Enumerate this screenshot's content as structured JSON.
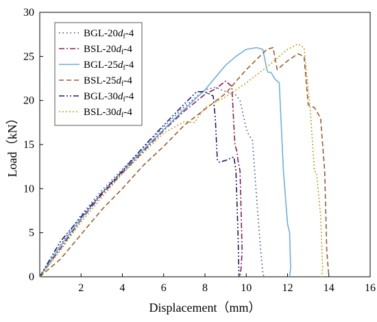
{
  "chart_data": {
    "type": "line",
    "xlabel": "Displacement（mm）",
    "ylabel": "Load（kN）",
    "xlim": [
      0,
      16
    ],
    "ylim": [
      0,
      30
    ],
    "xticks": [
      2,
      4,
      6,
      8,
      10,
      12,
      14,
      16
    ],
    "yticks": [
      0,
      5,
      10,
      15,
      20,
      25,
      30
    ],
    "grid": false,
    "legend_position": "top-left",
    "series": [
      {
        "name": "BGL-20d_f-4",
        "label_main": "BGL-20",
        "label_italic": "d",
        "label_sub": "f",
        "label_tail": "-4",
        "color": "#1f3fb0",
        "dash": "1.5,4",
        "x": [
          0,
          1,
          2,
          3,
          4,
          5,
          6,
          7,
          8,
          8.5,
          9.0,
          9.5,
          9.7,
          10.0,
          10.1,
          10.3,
          10.5,
          10.7,
          10.8,
          10.85
        ],
        "y": [
          0,
          3.6,
          7.0,
          9.8,
          12.2,
          14.6,
          17.0,
          19.3,
          21.2,
          21.5,
          21.0,
          20.6,
          20.0,
          16.8,
          16.2,
          15.5,
          9.0,
          3.0,
          0.5,
          0
        ]
      },
      {
        "name": "BSL-20d_f-4",
        "label_main": "BSL-20",
        "label_italic": "d",
        "label_sub": "f",
        "label_tail": "-4",
        "color": "#8b1a4a",
        "dash": "8,3,2,3",
        "x": [
          0,
          1,
          2,
          3,
          4,
          5,
          6,
          7,
          8,
          8.5,
          9.0,
          9.3,
          9.45,
          9.55,
          9.6,
          9.7,
          9.8,
          9.75,
          9.7
        ],
        "y": [
          0,
          3.2,
          6.5,
          9.3,
          11.8,
          14.2,
          16.6,
          18.8,
          20.7,
          21.3,
          22.2,
          21.6,
          15.0,
          14.2,
          13.2,
          12.0,
          3.0,
          1.0,
          0
        ]
      },
      {
        "name": "BGL-25d_f-4",
        "label_main": "BGL-25",
        "label_italic": "d",
        "label_sub": "f",
        "label_tail": "-4",
        "color": "#6aafe0",
        "dash": "",
        "x": [
          0,
          1,
          2,
          3,
          4,
          5,
          6,
          7,
          8,
          8.5,
          9.0,
          9.5,
          10.0,
          10.5,
          10.8,
          11.0,
          11.05,
          11.2,
          11.4,
          11.6,
          11.8,
          11.9,
          12.0,
          12.1,
          12.15,
          12.1
        ],
        "y": [
          0,
          3.5,
          6.6,
          9.5,
          12.0,
          14.4,
          16.7,
          19.0,
          21.2,
          22.6,
          24.0,
          25.0,
          25.8,
          26.0,
          25.8,
          23.5,
          23.2,
          23.2,
          22.4,
          22.0,
          12.0,
          9.0,
          6.0,
          5.0,
          1.0,
          0
        ]
      },
      {
        "name": "BSL-25d_f-4",
        "label_main": "BSL-25",
        "label_italic": "d",
        "label_sub": "f",
        "label_tail": "-4",
        "color": "#9b5a2a",
        "dash": "7,4",
        "x": [
          0,
          1,
          2,
          3,
          4,
          5,
          6,
          7,
          8,
          9,
          10,
          11,
          11.3,
          11.5,
          12.0,
          12.5,
          12.8,
          13.0,
          13.3,
          13.6,
          13.8,
          13.9,
          14.0
        ],
        "y": [
          0,
          2.0,
          4.8,
          7.6,
          10.0,
          12.6,
          14.8,
          17.2,
          19.0,
          20.8,
          23.5,
          25.8,
          26.0,
          23.5,
          24.5,
          25.3,
          25.0,
          19.5,
          19.2,
          18.0,
          12.0,
          3.0,
          0
        ]
      },
      {
        "name": "BGL-30d_f-4",
        "label_main": "BGL-30",
        "label_italic": "d",
        "label_sub": "f",
        "label_tail": "-4",
        "color": "#1a1a6a",
        "dash": "8,3,2,3,2,3",
        "x": [
          0,
          1,
          2,
          3,
          4,
          5,
          6,
          7,
          7.6,
          8.0,
          8.4,
          8.5,
          8.6,
          8.7,
          9.0,
          9.4,
          9.5,
          9.6,
          9.65
        ],
        "y": [
          0,
          4.0,
          6.8,
          9.5,
          12.0,
          14.7,
          17.2,
          19.6,
          21.0,
          21.0,
          20.5,
          18.0,
          13.2,
          13.0,
          13.2,
          13.6,
          12.0,
          5.0,
          0
        ]
      },
      {
        "name": "BSL-30d_f-4",
        "label_main": "BSL-30",
        "label_italic": "d",
        "label_sub": "f",
        "label_tail": "-4",
        "color": "#b8a010",
        "dash": "2,3",
        "x": [
          0,
          1,
          2,
          3,
          4,
          5,
          6,
          7,
          7.5,
          8.0,
          8.5,
          9.0,
          10.0,
          11.0,
          12.0,
          12.5,
          12.8,
          13.0,
          13.1,
          13.3,
          13.4,
          13.6,
          13.7,
          13.65
        ],
        "y": [
          0,
          3.0,
          6.2,
          9.0,
          11.7,
          14.0,
          16.3,
          17.6,
          17.5,
          19.2,
          19.8,
          20.4,
          22.0,
          23.8,
          25.8,
          26.4,
          26.0,
          21.2,
          19.0,
          12.0,
          11.8,
          7.0,
          1.0,
          0
        ]
      }
    ]
  }
}
